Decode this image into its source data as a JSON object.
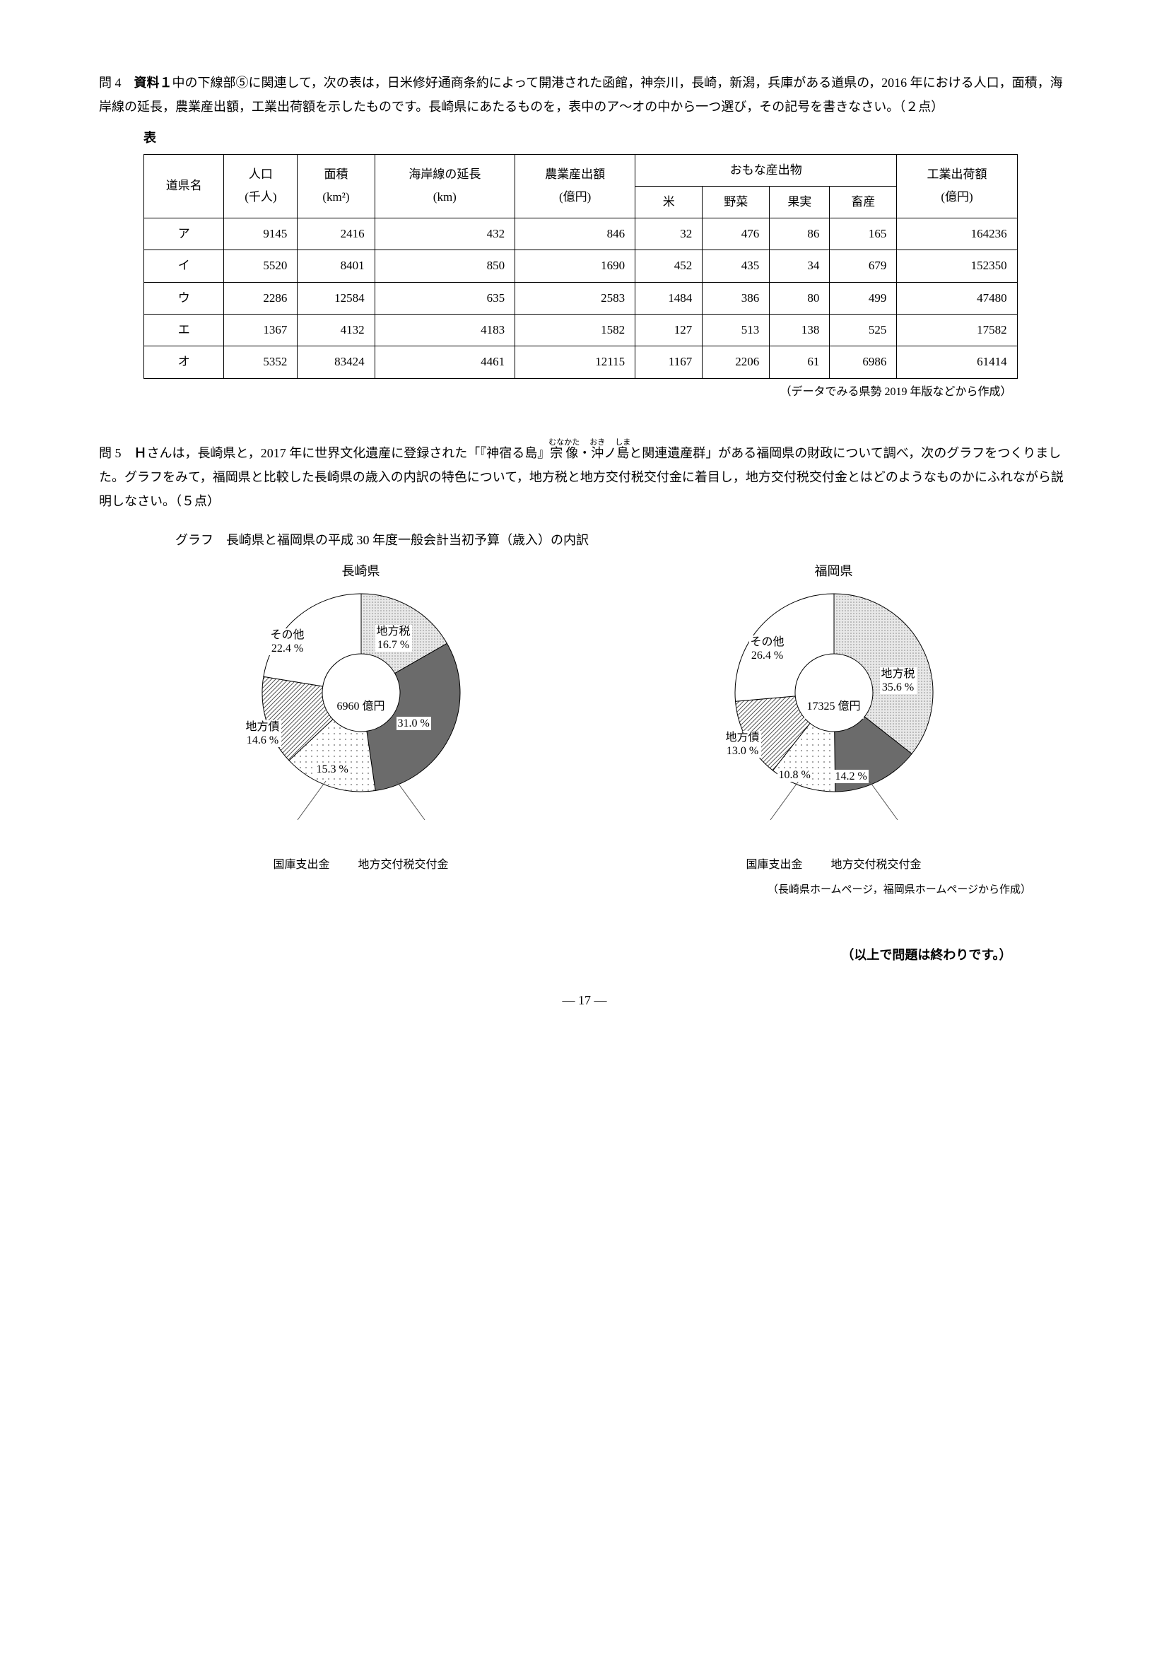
{
  "q4": {
    "label": "問 4",
    "text": "　<b>資料１</b>中の下線部⑤に関連して，次の表は，日米修好通商条約によって開港された函館，神奈川，長崎，新潟，兵庫がある道県の，2016 年における人口，面積，海岸線の延長，農業産出額，工業出荷額を示したものです。長崎県にあたるものを，表中のア〜オの中から一つ選び，その記号を書きなさい。（２点）",
    "table_label": "表",
    "headers": {
      "c1": "道県名",
      "c2": "人口\n(千人)",
      "c3": "面積\n(km²)",
      "c4": "海岸線の延長\n(km)",
      "c5": "農業産出額\n(億円)",
      "c6": "おもな産出物",
      "c7": "工業出荷額\n(億円)",
      "s1": "米",
      "s2": "野菜",
      "s3": "果実",
      "s4": "畜産"
    },
    "rows": [
      {
        "name": "ア",
        "pop": "9145",
        "area": "2416",
        "coast": "432",
        "agri": "846",
        "rice": "32",
        "veg": "476",
        "fruit": "86",
        "live": "165",
        "ind": "164236"
      },
      {
        "name": "イ",
        "pop": "5520",
        "area": "8401",
        "coast": "850",
        "agri": "1690",
        "rice": "452",
        "veg": "435",
        "fruit": "34",
        "live": "679",
        "ind": "152350"
      },
      {
        "name": "ウ",
        "pop": "2286",
        "area": "12584",
        "coast": "635",
        "agri": "2583",
        "rice": "1484",
        "veg": "386",
        "fruit": "80",
        "live": "499",
        "ind": "47480"
      },
      {
        "name": "エ",
        "pop": "1367",
        "area": "4132",
        "coast": "4183",
        "agri": "1582",
        "rice": "127",
        "veg": "513",
        "fruit": "138",
        "live": "525",
        "ind": "17582"
      },
      {
        "name": "オ",
        "pop": "5352",
        "area": "83424",
        "coast": "4461",
        "agri": "12115",
        "rice": "1167",
        "veg": "2206",
        "fruit": "61",
        "live": "6986",
        "ind": "61414"
      }
    ],
    "table_note": "（データでみる県勢 2019 年版などから作成）"
  },
  "q5": {
    "label": "問 5",
    "text": "　<b>Ｈ</b>さんは，長崎県と，2017 年に世界文化遺産に登録された「『神宿る島』<ruby>宗像<rt>むなかた</rt></ruby>・<ruby>沖<rt>おき</rt></ruby>ノ<ruby>島<rt>しま</rt></ruby>と関連遺産群」がある福岡県の財政について調べ，次のグラフをつくりました。グラフをみて，福岡県と比較した長崎県の歳入の内訳の特色について，地方税と地方交付税交付金に着目し，地方交付税交付金とはどのようなものかにふれながら説明しなさい。（５点）",
    "graph_title": "グラフ　長崎県と福岡県の平成 30 年度一般会計当初予算（歳入）の内訳",
    "nagasaki": {
      "title": "長崎県",
      "center": "6960 億円",
      "slices": [
        {
          "label": "地方税",
          "pct": 16.7,
          "value": "16.7 %",
          "fill": "dots-light"
        },
        {
          "label": "地方交付税交付金",
          "pct": 31.0,
          "value": "31.0 %",
          "fill": "dark"
        },
        {
          "label": "国庫支出金",
          "pct": 15.3,
          "value": "15.3 %",
          "fill": "dots-sparse"
        },
        {
          "label": "地方債",
          "pct": 14.6,
          "value": "14.6 %",
          "fill": "hatch"
        },
        {
          "label": "その他",
          "pct": 22.4,
          "value": "22.4 %",
          "fill": "white"
        }
      ]
    },
    "fukuoka": {
      "title": "福岡県",
      "center": "17325 億円",
      "slices": [
        {
          "label": "地方税",
          "pct": 35.6,
          "value": "35.6 %",
          "fill": "dots-light"
        },
        {
          "label": "地方交付税交付金",
          "pct": 14.2,
          "value": "14.2 %",
          "fill": "dark"
        },
        {
          "label": "国庫支出金",
          "pct": 10.8,
          "value": "10.8 %",
          "fill": "dots-sparse"
        },
        {
          "label": "地方債",
          "pct": 13.0,
          "value": "13.0 %",
          "fill": "hatch"
        },
        {
          "label": "その他",
          "pct": 26.4,
          "value": "26.4 %",
          "fill": "white"
        }
      ]
    },
    "below_left1": "国庫支出金",
    "below_left2": "地方交付税交付金",
    "below_right1": "国庫支出金",
    "below_right2": "地方交付税交付金",
    "source_note": "（長崎県ホームページ，福岡県ホームページから作成）"
  },
  "end_note": "（以上で問題は終わりです。）",
  "page_num": "— 17 —",
  "colors": {
    "dark": "#6b6b6b",
    "dots-light": "#d0d0d0",
    "dots-sparse": "#f2f2f2",
    "hatch-stroke": "#555",
    "border": "#000"
  }
}
